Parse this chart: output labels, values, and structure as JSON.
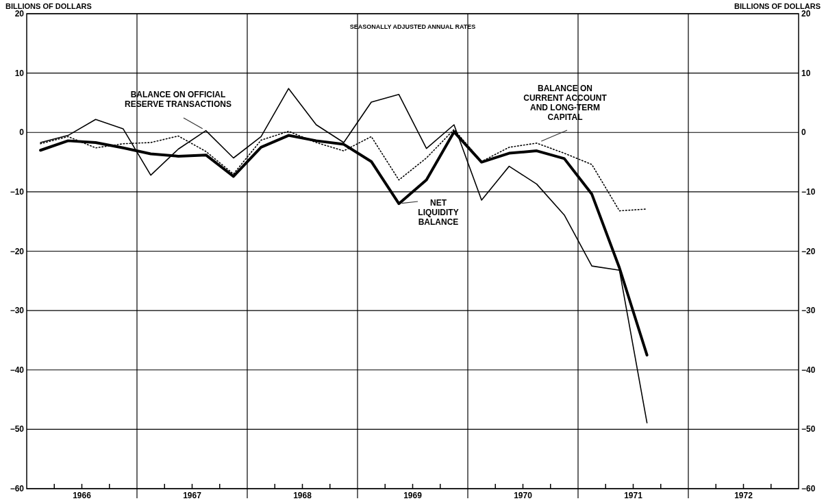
{
  "chart_data": {
    "type": "line",
    "subtitle": "SEASONALLY ADJUSTED ANNUAL RATES",
    "ylabel": "BILLIONS OF DOLLARS",
    "y2label": "BILLIONS OF DOLLARS",
    "x": [
      1966.125,
      1966.375,
      1966.625,
      1966.875,
      1967.125,
      1967.375,
      1967.625,
      1967.875,
      1968.125,
      1968.375,
      1968.625,
      1968.875,
      1969.125,
      1969.375,
      1969.625,
      1969.875,
      1970.125,
      1970.375,
      1970.625,
      1970.875,
      1971.125,
      1971.375,
      1971.625
    ],
    "series": [
      {
        "name": "BALANCE ON OFFICIAL RESERVE TRANSACTIONS",
        "color": "#000000",
        "line_style": "solid",
        "values": [
          -1.7,
          -0.5,
          2.2,
          0.6,
          -7.2,
          -2.8,
          0.3,
          -4.3,
          -0.7,
          7.4,
          1.3,
          -1.7,
          5.1,
          6.4,
          -2.7,
          1.3,
          -11.4,
          -5.7,
          -8.7,
          -13.9,
          -22.5,
          -23.2,
          -48.9
        ]
      },
      {
        "name": "BALANCE ON CURRENT ACCOUNT AND LONG-TERM CAPITAL",
        "color": "#000000",
        "line_style": "dotted",
        "values": [
          -1.9,
          -0.7,
          -2.6,
          -1.9,
          -1.7,
          -0.6,
          -3.2,
          -7.0,
          -1.3,
          0.2,
          -1.7,
          -3.1,
          -0.7,
          -8.0,
          -4.3,
          0.5,
          -4.9,
          -2.5,
          -1.8,
          -3.5,
          -5.4,
          -13.2,
          -12.9
        ]
      },
      {
        "name": "NET LIQUIDITY BALANCE",
        "color": "#000000",
        "line_style": "solid",
        "values": [
          -3.0,
          -1.4,
          -1.7,
          -2.6,
          -3.6,
          -4.0,
          -3.8,
          -7.4,
          -2.5,
          -0.5,
          -1.4,
          -2.0,
          -4.9,
          -12.0,
          -8.0,
          0.1,
          -5.0,
          -3.5,
          -3.1,
          -4.4,
          -10.4,
          -22.8,
          -37.5
        ]
      }
    ],
    "xlim": [
      1966,
      1973
    ],
    "xticks": [
      {
        "value": 1966.25,
        "label": null
      },
      {
        "value": 1966.5,
        "label": "1966"
      },
      {
        "value": 1966.75,
        "label": null
      },
      {
        "value": 1967.25,
        "label": null
      },
      {
        "value": 1967.5,
        "label": "1967"
      },
      {
        "value": 1967.75,
        "label": null
      },
      {
        "value": 1968.25,
        "label": null
      },
      {
        "value": 1968.5,
        "label": "1968"
      },
      {
        "value": 1968.75,
        "label": null
      },
      {
        "value": 1969.25,
        "label": null
      },
      {
        "value": 1969.5,
        "label": "1969"
      },
      {
        "value": 1969.75,
        "label": null
      },
      {
        "value": 1970.25,
        "label": null
      },
      {
        "value": 1970.5,
        "label": "1970"
      },
      {
        "value": 1970.75,
        "label": null
      },
      {
        "value": 1971.25,
        "label": null
      },
      {
        "value": 1971.5,
        "label": "1971"
      },
      {
        "value": 1971.75,
        "label": null
      },
      {
        "value": 1972.25,
        "label": null
      },
      {
        "value": 1972.5,
        "label": "1972"
      },
      {
        "value": 1972.75,
        "label": null
      }
    ],
    "ylim": [
      -60,
      20
    ],
    "yticks": [
      -60,
      -50,
      -40,
      -30,
      -20,
      -10,
      0,
      10,
      20
    ],
    "y2lim": [
      -60,
      20
    ],
    "y2ticks": [
      -60,
      -50,
      -40,
      -30,
      -20,
      -10,
      0,
      10,
      20
    ],
    "ref_lines": [
      {
        "axis": "x",
        "value": 1967,
        "label": null
      },
      {
        "axis": "x",
        "value": 1968,
        "label": null
      },
      {
        "axis": "x",
        "value": 1969,
        "label": null
      },
      {
        "axis": "x",
        "value": 1970,
        "label": null
      },
      {
        "axis": "x",
        "value": 1971,
        "label": null
      },
      {
        "axis": "x",
        "value": 1972,
        "label": null
      }
    ],
    "grid": "y",
    "marker": "none"
  }
}
